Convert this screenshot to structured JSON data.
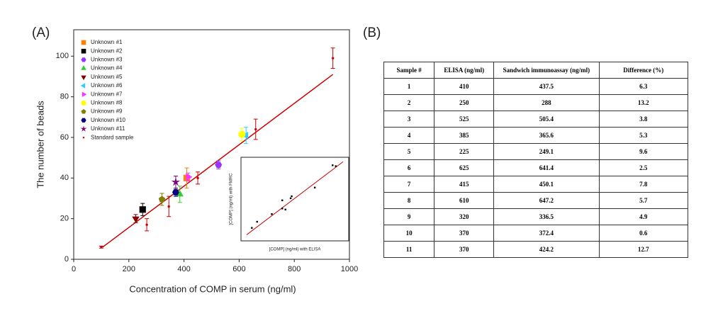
{
  "panel_labels": [
    "(A)",
    "(B)"
  ],
  "chart_data": {
    "type": "scatter",
    "xlabel": "Concentration of COMP in serum (ng/ml)",
    "ylabel": "The number of beads",
    "xlim": [
      0,
      1000
    ],
    "xticks": [
      0,
      200,
      400,
      600,
      800,
      1000
    ],
    "ylim": [
      0,
      113
    ],
    "yticks": [
      0,
      20,
      40,
      60,
      80,
      100
    ],
    "legend": "upper left",
    "series": [
      {
        "name": "Unknown #1",
        "color": "#ff8000",
        "marker": "square",
        "x": [
          410
        ],
        "y": [
          40
        ],
        "error": [
          5
        ]
      },
      {
        "name": "Unknown #2",
        "color": "#000000",
        "marker": "square",
        "x": [
          250
        ],
        "y": [
          24.5
        ],
        "error": [
          3
        ]
      },
      {
        "name": "Unknown #3",
        "color": "#9933ff",
        "marker": "hexagon",
        "x": [
          525
        ],
        "y": [
          46.5
        ],
        "error": [
          2
        ]
      },
      {
        "name": "Unknown #4",
        "color": "#33cc33",
        "marker": "triangle-up",
        "x": [
          385
        ],
        "y": [
          32
        ],
        "error": [
          4
        ]
      },
      {
        "name": "Unknown #5",
        "color": "#800000",
        "marker": "triangle-down",
        "x": [
          225
        ],
        "y": [
          20
        ],
        "error": [
          2
        ]
      },
      {
        "name": "Unknown #6",
        "color": "#33ccff",
        "marker": "triangle-left",
        "x": [
          625
        ],
        "y": [
          61
        ],
        "error": [
          4
        ]
      },
      {
        "name": "Unknown #7",
        "color": "#ff33ff",
        "marker": "triangle-right",
        "x": [
          415
        ],
        "y": [
          40.5
        ],
        "error": [
          2
        ]
      },
      {
        "name": "Unknown #8",
        "color": "#ffff00",
        "marker": "circle",
        "x": [
          610
        ],
        "y": [
          61.5
        ],
        "error": [
          3
        ]
      },
      {
        "name": "Unknown #9",
        "color": "#808000",
        "marker": "pentagon",
        "x": [
          320
        ],
        "y": [
          29.5
        ],
        "error": [
          3
        ]
      },
      {
        "name": "Unknown #10",
        "color": "#000080",
        "marker": "hexagon",
        "x": [
          370
        ],
        "y": [
          33
        ],
        "error": [
          2
        ]
      },
      {
        "name": "Unknown #11",
        "color": "#800080",
        "marker": "star",
        "x": [
          370
        ],
        "y": [
          38
        ],
        "error": [
          3
        ]
      },
      {
        "name": "Standard sample",
        "color": "#cc0000",
        "marker": "dot",
        "x": [
          100,
          265,
          345,
          450,
          660,
          940
        ],
        "y": [
          6,
          17,
          26,
          40,
          64,
          99
        ],
        "error": [
          0.5,
          3,
          5,
          3,
          5,
          5
        ]
      }
    ],
    "fit_line": {
      "color": "#cc0000",
      "x": [
        105,
        940
      ],
      "y": [
        6,
        91
      ]
    },
    "inset": {
      "type": "scatter",
      "xlabel": "[COMP] (ng/ml) with ELISA",
      "ylabel": "[COMP] (ng/ml) with FMRC",
      "xlim": [
        180,
        680
      ],
      "ylim": [
        180,
        680
      ],
      "x": [
        410,
        250,
        525,
        385,
        225,
        625,
        415,
        610,
        320,
        370,
        370
      ],
      "y": [
        437.5,
        288,
        505.4,
        365.6,
        249.1,
        641.4,
        450.1,
        647.2,
        336.5,
        372.4,
        424.2
      ],
      "color": "#000000",
      "fit_line": {
        "color": "#cc0000",
        "x": [
          200,
          660
        ],
        "y": [
          205,
          670
        ]
      }
    }
  },
  "table": {
    "header": [
      "Sample #",
      "ELISA (ng/ml)",
      "Sandwich immunoassay (ng/ml)",
      "Difference (%)"
    ],
    "rows": [
      [
        "1",
        "410",
        "437.5",
        "6.3"
      ],
      [
        "2",
        "250",
        "288",
        "13.2"
      ],
      [
        "3",
        "525",
        "505.4",
        "3.8"
      ],
      [
        "4",
        "385",
        "365.6",
        "5.3"
      ],
      [
        "5",
        "225",
        "249.1",
        "9.6"
      ],
      [
        "6",
        "625",
        "641.4",
        "2.5"
      ],
      [
        "7",
        "415",
        "450.1",
        "7.8"
      ],
      [
        "8",
        "610",
        "647.2",
        "5.7"
      ],
      [
        "9",
        "320",
        "336.5",
        "4.9"
      ],
      [
        "10",
        "370",
        "372.4",
        "0.6"
      ],
      [
        "11",
        "370",
        "424.2",
        "12.7"
      ]
    ]
  }
}
